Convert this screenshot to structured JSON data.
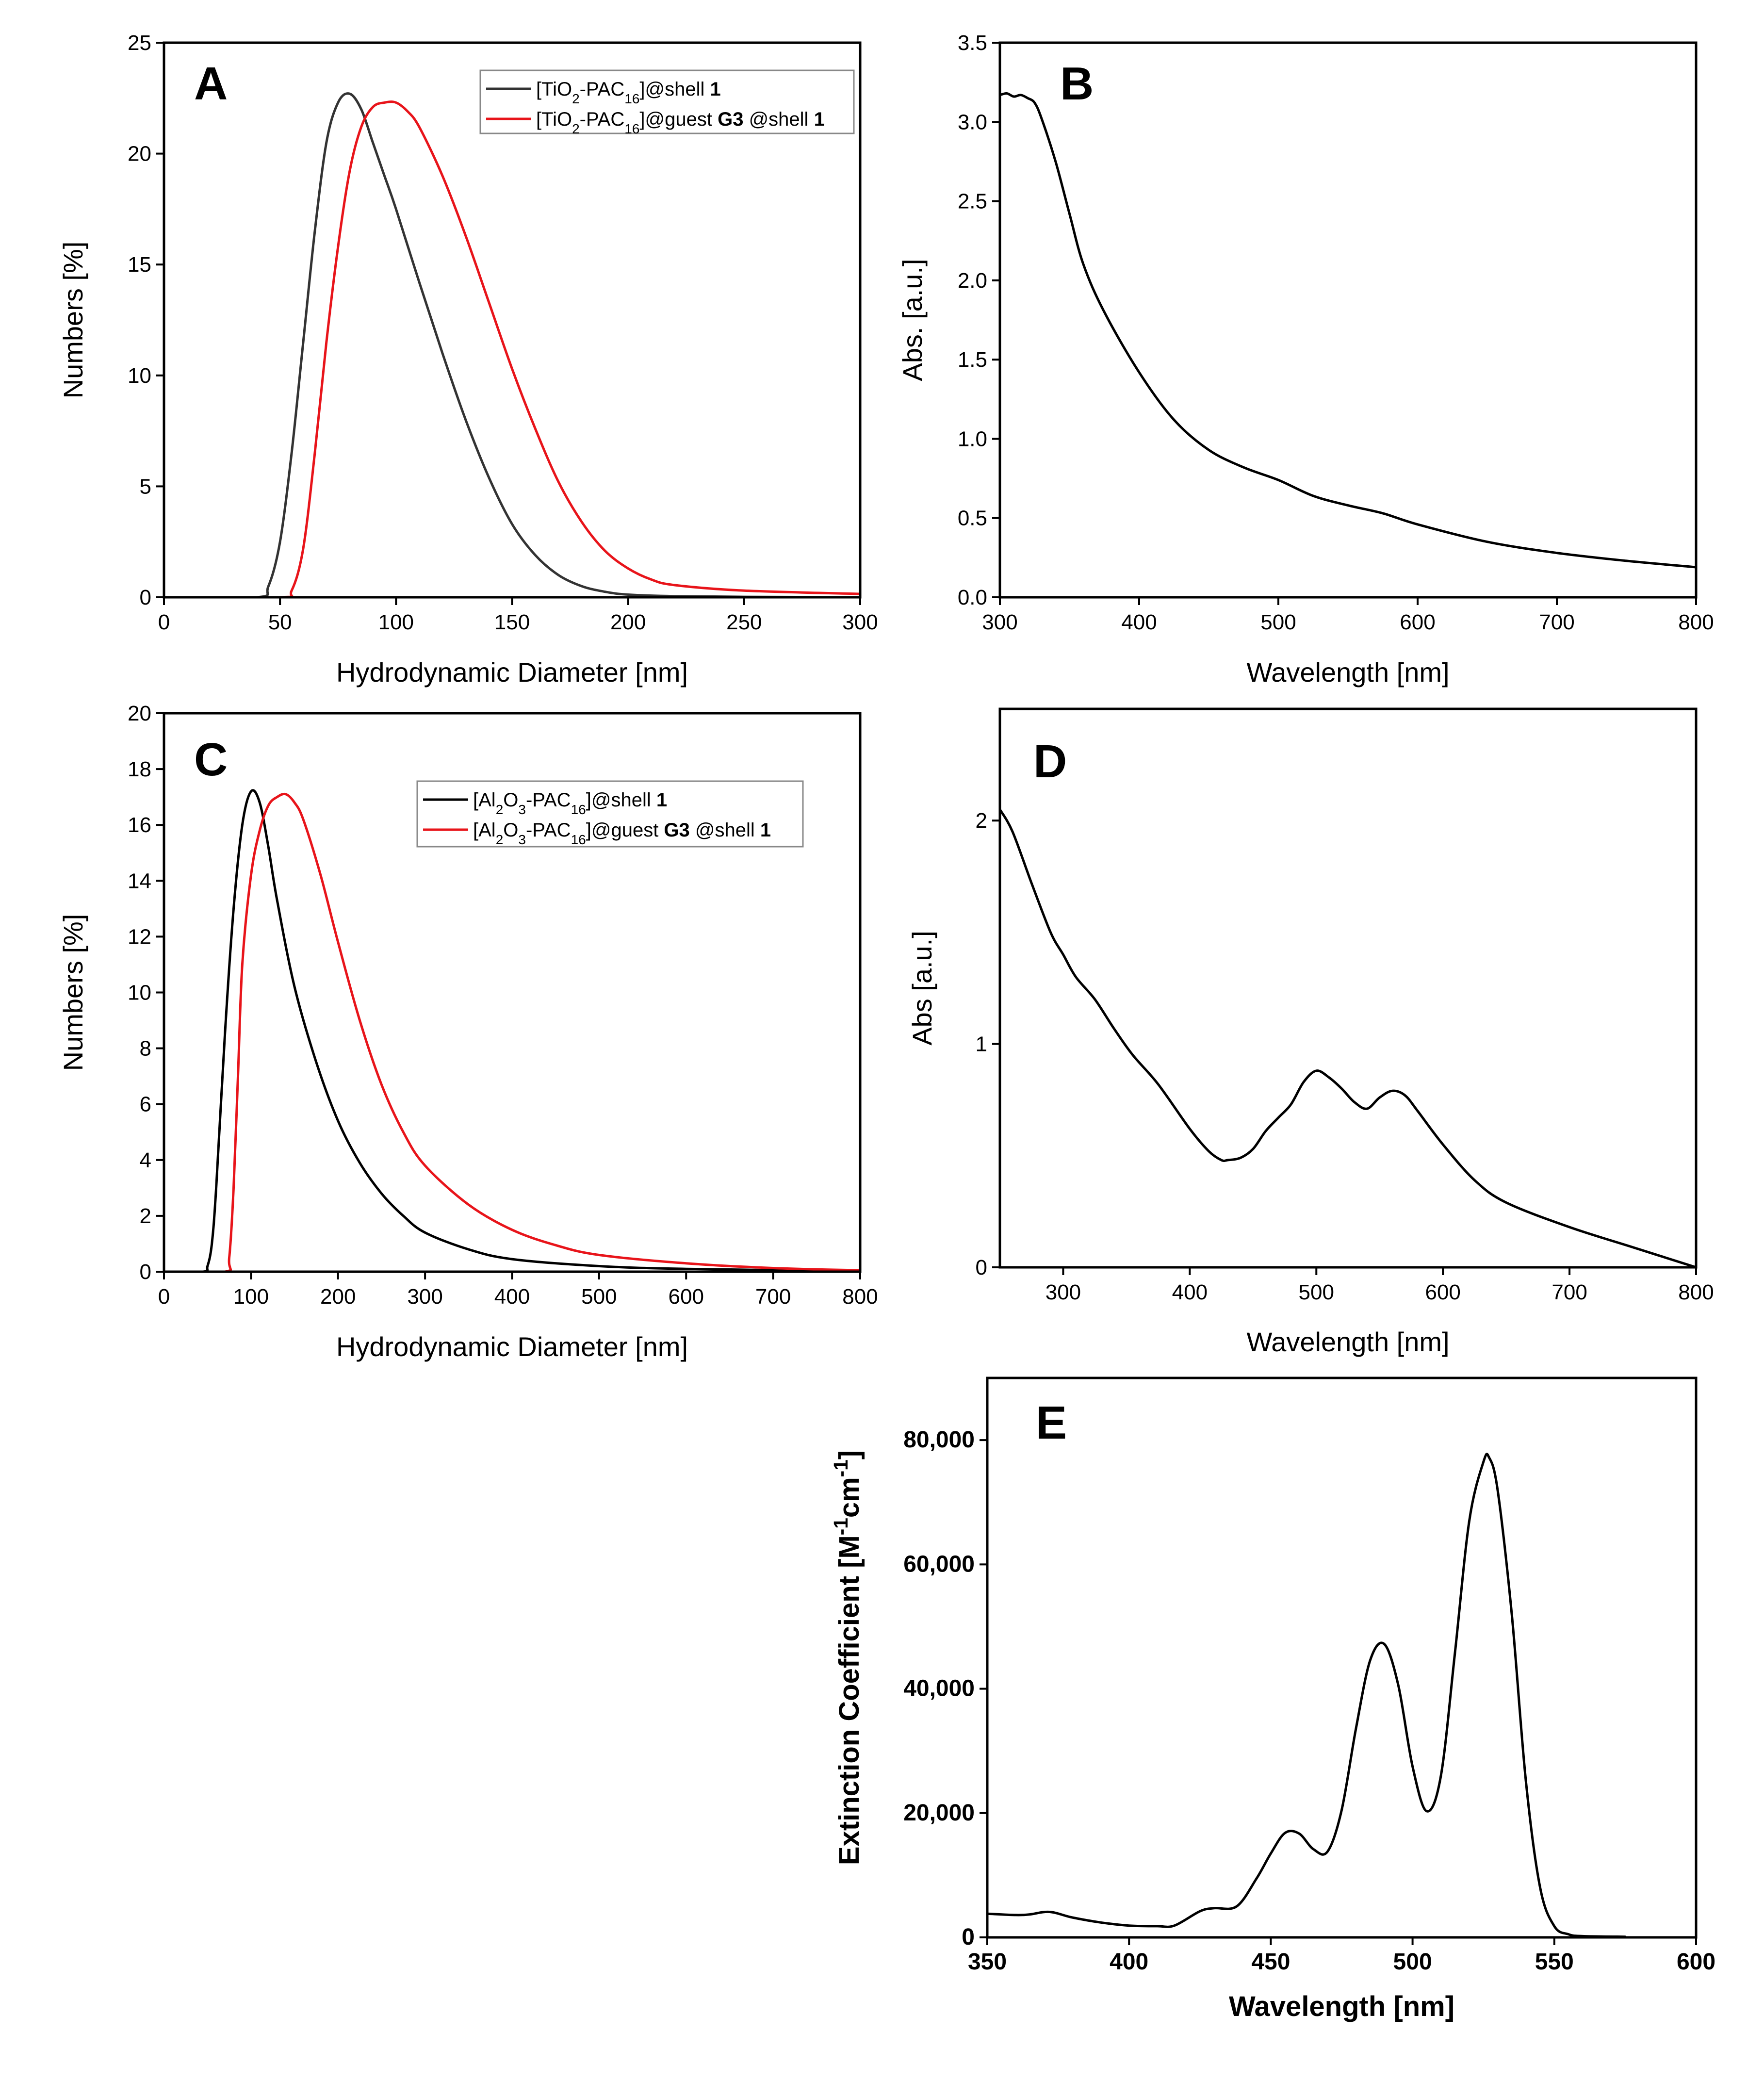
{
  "chart_data": [
    {
      "panel": "A",
      "type": "line",
      "xlabel": "Hydrodynamic Diameter [nm]",
      "ylabel": "Numbers [%]",
      "xlim": [
        0,
        300
      ],
      "ylim": [
        0,
        25
      ],
      "xticks": [
        "0",
        "50",
        "100",
        "150",
        "200",
        "250",
        "300"
      ],
      "yticks": [
        "0",
        "5",
        "10",
        "15",
        "20",
        "25"
      ],
      "legend_position": "top-right",
      "series": [
        {
          "name": "[TiO2-PAC16]@shell 1",
          "legend": [
            "[TiO",
            "2",
            "-PAC",
            "16",
            "]@shell ",
            "1"
          ],
          "color": "#333333",
          "x": [
            0,
            40,
            45,
            50,
            55,
            60,
            65,
            70,
            75,
            80,
            85,
            90,
            95,
            100,
            110,
            120,
            130,
            140,
            150,
            160,
            170,
            180,
            190,
            200,
            220,
            250,
            300
          ],
          "y": [
            0,
            0,
            0.5,
            2.5,
            6.5,
            11.5,
            16.5,
            20.5,
            22.3,
            22.7,
            22,
            20.5,
            19,
            17.5,
            14.2,
            11,
            8,
            5.4,
            3.3,
            1.9,
            1,
            0.5,
            0.25,
            0.12,
            0.05,
            0.02,
            0
          ]
        },
        {
          "name": "[TiO2-PAC16]@guest G3 @shell 1",
          "legend": [
            "[TiO",
            "2",
            "-PAC",
            "16",
            "]@guest ",
            "G3",
            " @shell ",
            "1"
          ],
          "color": "#e8141a",
          "x": [
            0,
            50,
            55,
            60,
            65,
            70,
            75,
            80,
            85,
            90,
            95,
            100,
            105,
            110,
            120,
            130,
            140,
            150,
            160,
            170,
            180,
            190,
            200,
            210,
            220,
            250,
            300
          ],
          "y": [
            0,
            0,
            0.3,
            2.2,
            6.5,
            11.5,
            15.8,
            19.2,
            21.2,
            22.1,
            22.3,
            22.3,
            21.9,
            21.2,
            19,
            16.3,
            13.3,
            10.3,
            7.6,
            5.2,
            3.4,
            2.1,
            1.3,
            0.8,
            0.55,
            0.3,
            0.15
          ]
        }
      ]
    },
    {
      "panel": "B",
      "type": "line",
      "xlabel": "Wavelength [nm]",
      "ylabel": "Abs. [a.u.]",
      "xlim": [
        300,
        800
      ],
      "ylim": [
        0,
        3.5
      ],
      "xticks": [
        "300",
        "400",
        "500",
        "600",
        "700",
        "800"
      ],
      "yticks": [
        "0.0",
        "0.5",
        "1.0",
        "1.5",
        "2.0",
        "2.5",
        "3.0",
        "3.5"
      ],
      "series": [
        {
          "name": "Abs",
          "color": "#000000",
          "x": [
            300,
            305,
            310,
            315,
            320,
            325,
            330,
            340,
            350,
            360,
            375,
            400,
            425,
            450,
            475,
            500,
            525,
            550,
            575,
            600,
            650,
            700,
            750,
            800
          ],
          "y": [
            3.17,
            3.18,
            3.16,
            3.17,
            3.15,
            3.12,
            3.02,
            2.75,
            2.42,
            2.1,
            1.8,
            1.42,
            1.12,
            0.93,
            0.82,
            0.74,
            0.64,
            0.58,
            0.53,
            0.46,
            0.35,
            0.28,
            0.23,
            0.19
          ]
        }
      ]
    },
    {
      "panel": "C",
      "type": "line",
      "xlabel": "Hydrodynamic Diameter [nm]",
      "ylabel": "Numbers [%]",
      "xlim": [
        0,
        800
      ],
      "ylim": [
        0,
        20
      ],
      "xticks": [
        "0",
        "100",
        "200",
        "300",
        "400",
        "500",
        "600",
        "700",
        "800"
      ],
      "yticks": [
        "0",
        "2",
        "4",
        "6",
        "8",
        "10",
        "12",
        "14",
        "16",
        "18",
        "20"
      ],
      "legend_position": "top-right",
      "series": [
        {
          "name": "[Al2O3-PAC16]@shell 1",
          "legend": [
            "[Al",
            "2",
            "O",
            "3",
            "-PAC",
            "16",
            "]@shell ",
            "1"
          ],
          "color": "#000000",
          "x": [
            0,
            45,
            50,
            55,
            60,
            70,
            80,
            90,
            100,
            110,
            120,
            130,
            150,
            175,
            200,
            225,
            250,
            275,
            300,
            350,
            400,
            500,
            600,
            800
          ],
          "y": [
            0,
            0,
            0.2,
            1,
            3,
            8.5,
            13,
            16,
            17.2,
            16.8,
            15.2,
            13.3,
            10.2,
            7.5,
            5.4,
            3.9,
            2.8,
            2.0,
            1.4,
            0.8,
            0.45,
            0.2,
            0.1,
            0.02
          ]
        },
        {
          "name": "[Al2O3-PAC16]@guest G3 @shell 1",
          "legend": [
            "[Al",
            "2",
            "O",
            "3",
            "-PAC",
            "16",
            "]@guest ",
            "G3",
            " @shell ",
            "1"
          ],
          "color": "#e8141a",
          "x": [
            0,
            70,
            75,
            80,
            85,
            90,
            100,
            110,
            120,
            130,
            140,
            150,
            160,
            180,
            200,
            225,
            250,
            275,
            300,
            350,
            400,
            450,
            500,
            600,
            700,
            800
          ],
          "y": [
            0,
            0,
            0.5,
            3,
            7,
            11,
            14.2,
            15.8,
            16.7,
            17,
            17.1,
            16.8,
            16.2,
            14.2,
            11.8,
            9,
            6.7,
            5,
            3.8,
            2.4,
            1.5,
            0.95,
            0.6,
            0.3,
            0.13,
            0.05
          ]
        }
      ]
    },
    {
      "panel": "D",
      "type": "line",
      "xlabel": "Wavelength [nm]",
      "ylabel": "Abs [a.u.]",
      "xlim": [
        250,
        800
      ],
      "ylim": [
        0,
        2.5
      ],
      "xticks": [
        "300",
        "400",
        "500",
        "600",
        "700",
        "800"
      ],
      "yticks": [
        "0",
        "1",
        "2"
      ],
      "series": [
        {
          "name": "Abs",
          "color": "#000000",
          "x": [
            250,
            260,
            275,
            290,
            300,
            310,
            325,
            340,
            355,
            375,
            400,
            415,
            425,
            430,
            440,
            450,
            460,
            470,
            480,
            490,
            500,
            510,
            520,
            530,
            540,
            550,
            560,
            570,
            580,
            600,
            625,
            650,
            700,
            750,
            800
          ],
          "y": [
            2.05,
            1.95,
            1.72,
            1.5,
            1.4,
            1.3,
            1.2,
            1.07,
            0.95,
            0.82,
            0.62,
            0.52,
            0.48,
            0.48,
            0.49,
            0.53,
            0.61,
            0.67,
            0.73,
            0.83,
            0.88,
            0.85,
            0.8,
            0.74,
            0.71,
            0.76,
            0.79,
            0.77,
            0.7,
            0.55,
            0.39,
            0.29,
            0.18,
            0.09,
            0.0
          ]
        }
      ]
    },
    {
      "panel": "E",
      "type": "line",
      "xlabel": "Wavelength [nm]",
      "ylabel": "Extinction Coefficient [M-1cm-1]",
      "ylabel_parts": [
        "Extinction Coefficient [M",
        "-1",
        "cm",
        "-1",
        "]"
      ],
      "xlim": [
        350,
        600
      ],
      "ylim": [
        0,
        90000
      ],
      "xticks": [
        "350",
        "400",
        "450",
        "500",
        "550",
        "600"
      ],
      "yticks": [
        "0",
        "20,000",
        "40,000",
        "60,000",
        "80,000"
      ],
      "series": [
        {
          "name": "Extinction",
          "color": "#000000",
          "x": [
            350,
            360,
            365,
            372,
            380,
            390,
            400,
            410,
            416,
            425,
            430,
            438,
            445,
            450,
            455,
            460,
            465,
            470,
            475,
            480,
            485,
            490,
            495,
            500,
            505,
            510,
            515,
            520,
            525,
            527,
            530,
            535,
            540,
            545,
            550,
            555,
            560,
            575
          ],
          "y": [
            3800,
            3600,
            3700,
            4100,
            3200,
            2400,
            1900,
            1800,
            1900,
            4200,
            4700,
            5000,
            9500,
            13500,
            16800,
            16700,
            14200,
            13800,
            20500,
            33500,
            44500,
            47200,
            40500,
            27500,
            20300,
            26000,
            46000,
            67000,
            76500,
            77200,
            72000,
            52000,
            25000,
            8000,
            1800,
            500,
            200,
            100
          ]
        }
      ]
    }
  ]
}
